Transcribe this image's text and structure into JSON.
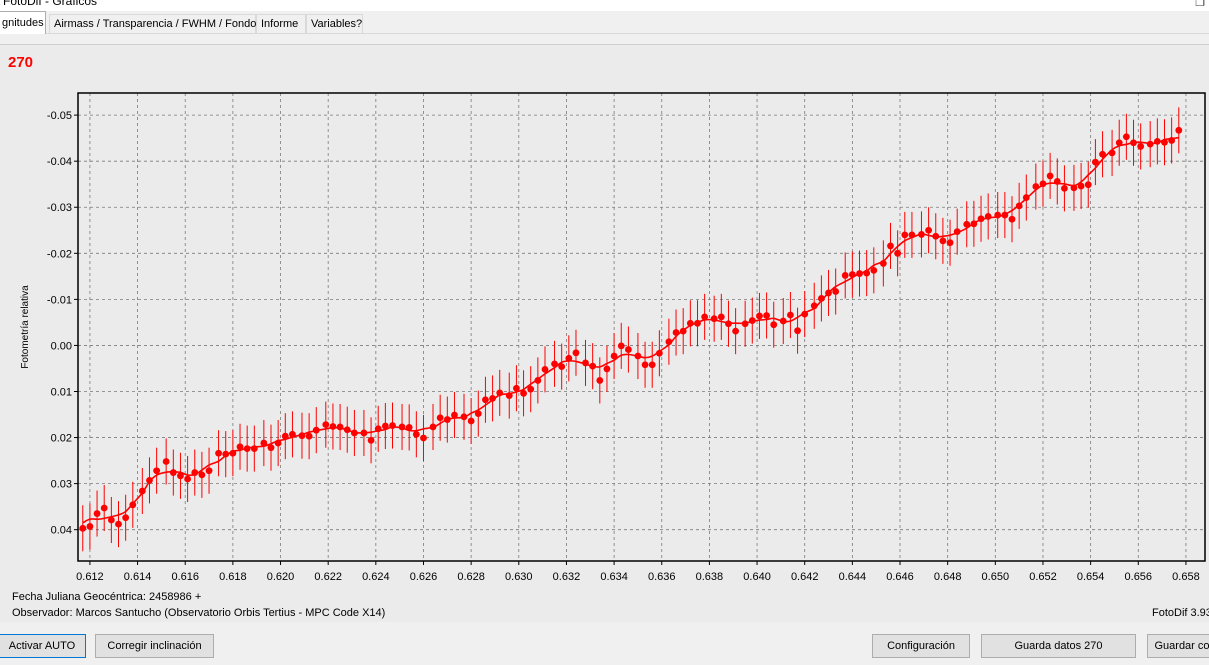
{
  "window": {
    "title": "FotoDif - Gráficos"
  },
  "tabs": [
    {
      "label": "gnitudes",
      "active": true
    },
    {
      "label": "Airmass / Transparencia / FWHM / Fondo",
      "active": false
    },
    {
      "label": "Informe",
      "active": false
    },
    {
      "label": "Variables?",
      "active": false
    }
  ],
  "panel": {
    "label": "270",
    "footer_line1": "Fecha Juliana Geocéntrica: 2458986 +",
    "footer_line2": "Observador: Marcos Santucho (Observatorio Orbis Tertius - MPC Code X14)",
    "version": "FotoDif 3.93"
  },
  "buttons": {
    "activar_auto": "Activar AUTO",
    "corregir_inclinacion": "Corregir inclinación",
    "configuracion": "Configuración",
    "guarda_datos": "Guarda datos 270",
    "guardar": "Guardar co"
  },
  "colors": {
    "series": "#ff0000",
    "plot_bg": "#ebebeb"
  },
  "chart_data": {
    "type": "scatter",
    "xlabel": "",
    "ylabel": "Fotometría relativa",
    "y_inverted": true,
    "xlim": [
      0.6115,
      0.6588
    ],
    "ylim": [
      -0.0548,
      0.0468
    ],
    "x_ticks": [
      "0.612",
      "0.614",
      "0.616",
      "0.618",
      "0.620",
      "0.622",
      "0.624",
      "0.626",
      "0.628",
      "0.630",
      "0.632",
      "0.634",
      "0.636",
      "0.638",
      "0.640",
      "0.642",
      "0.644",
      "0.646",
      "0.648",
      "0.650",
      "0.652",
      "0.654",
      "0.656",
      "0.658"
    ],
    "x_tick_values": [
      0.612,
      0.614,
      0.616,
      0.618,
      0.62,
      0.622,
      0.624,
      0.626,
      0.628,
      0.63,
      0.632,
      0.634,
      0.636,
      0.638,
      0.64,
      0.642,
      0.644,
      0.646,
      0.648,
      0.65,
      0.652,
      0.654,
      0.656,
      0.658
    ],
    "y_ticks": [
      "-0.05",
      "-0.04",
      "-0.03",
      "-0.02",
      "-0.01",
      "0.00",
      "0.01",
      "0.02",
      "0.03",
      "0.04"
    ],
    "y_tick_values": [
      -0.05,
      -0.04,
      -0.03,
      -0.02,
      -0.01,
      0.0,
      0.01,
      0.02,
      0.03,
      0.04
    ],
    "grid": true,
    "error_bar": 0.005,
    "series": [
      {
        "marker": "filled-circle",
        "smooth_line": true,
        "points": [
          [
            0.6117,
            0.0397
          ],
          [
            0.612,
            0.0393
          ],
          [
            0.6123,
            0.0365
          ],
          [
            0.6126,
            0.0353
          ],
          [
            0.6129,
            0.0379
          ],
          [
            0.6132,
            0.0388
          ],
          [
            0.6135,
            0.0374
          ],
          [
            0.6138,
            0.0346
          ],
          [
            0.6142,
            0.0316
          ],
          [
            0.6145,
            0.0293
          ],
          [
            0.6148,
            0.0272
          ],
          [
            0.6152,
            0.0252
          ],
          [
            0.6155,
            0.0276
          ],
          [
            0.6158,
            0.0283
          ],
          [
            0.6161,
            0.029
          ],
          [
            0.6164,
            0.0276
          ],
          [
            0.6167,
            0.0281
          ],
          [
            0.617,
            0.0272
          ],
          [
            0.6174,
            0.0234
          ],
          [
            0.6177,
            0.0236
          ],
          [
            0.618,
            0.0234
          ],
          [
            0.6183,
            0.022
          ],
          [
            0.6186,
            0.0224
          ],
          [
            0.6189,
            0.0224
          ],
          [
            0.6193,
            0.0212
          ],
          [
            0.6196,
            0.0222
          ],
          [
            0.6199,
            0.0212
          ],
          [
            0.6202,
            0.0197
          ],
          [
            0.6205,
            0.0193
          ],
          [
            0.6209,
            0.0196
          ],
          [
            0.6212,
            0.0197
          ],
          [
            0.6215,
            0.0184
          ],
          [
            0.6219,
            0.0172
          ],
          [
            0.6222,
            0.0176
          ],
          [
            0.6225,
            0.0177
          ],
          [
            0.6228,
            0.0183
          ],
          [
            0.6231,
            0.019
          ],
          [
            0.6235,
            0.019
          ],
          [
            0.6238,
            0.0206
          ],
          [
            0.6241,
            0.0181
          ],
          [
            0.6244,
            0.0175
          ],
          [
            0.6247,
            0.0174
          ],
          [
            0.6251,
            0.0177
          ],
          [
            0.6254,
            0.0178
          ],
          [
            0.6257,
            0.0193
          ],
          [
            0.626,
            0.0201
          ],
          [
            0.6264,
            0.0177
          ],
          [
            0.6267,
            0.0157
          ],
          [
            0.627,
            0.0161
          ],
          [
            0.6273,
            0.0151
          ],
          [
            0.6277,
            0.0155
          ],
          [
            0.628,
            0.0164
          ],
          [
            0.6283,
            0.0148
          ],
          [
            0.6286,
            0.0118
          ],
          [
            0.6289,
            0.0115
          ],
          [
            0.6292,
            0.0103
          ],
          [
            0.6296,
            0.0109
          ],
          [
            0.6299,
            0.0093
          ],
          [
            0.6302,
            0.0104
          ],
          [
            0.6305,
            0.0095
          ],
          [
            0.6308,
            0.0076
          ],
          [
            0.6311,
            0.0052
          ],
          [
            0.6315,
            0.004
          ],
          [
            0.6318,
            0.0046
          ],
          [
            0.6321,
            0.0028
          ],
          [
            0.6324,
            0.0016
          ],
          [
            0.6328,
            0.0038
          ],
          [
            0.6331,
            0.0045
          ],
          [
            0.6334,
            0.0076
          ],
          [
            0.6337,
            0.0051
          ],
          [
            0.634,
            0.0023
          ],
          [
            0.6343,
            0.0001
          ],
          [
            0.6346,
            0.0009
          ],
          [
            0.635,
            0.0023
          ],
          [
            0.6353,
            0.0042
          ],
          [
            0.6356,
            0.0042
          ],
          [
            0.6359,
            0.0017
          ],
          [
            0.6363,
            -0.0008
          ],
          [
            0.6366,
            -0.0028
          ],
          [
            0.6369,
            -0.0031
          ],
          [
            0.6372,
            -0.0048
          ],
          [
            0.6375,
            -0.0048
          ],
          [
            0.6378,
            -0.0062
          ],
          [
            0.6382,
            -0.0058
          ],
          [
            0.6385,
            -0.0062
          ],
          [
            0.6388,
            -0.0047
          ],
          [
            0.6391,
            -0.0031
          ],
          [
            0.6395,
            -0.0047
          ],
          [
            0.6398,
            -0.0054
          ],
          [
            0.6401,
            -0.0064
          ],
          [
            0.6404,
            -0.0065
          ],
          [
            0.6407,
            -0.0045
          ],
          [
            0.6411,
            -0.0053
          ],
          [
            0.6414,
            -0.0066
          ],
          [
            0.6417,
            -0.0032
          ],
          [
            0.642,
            -0.0068
          ],
          [
            0.6424,
            -0.0086
          ],
          [
            0.6427,
            -0.0102
          ],
          [
            0.643,
            -0.0114
          ],
          [
            0.6433,
            -0.0117
          ],
          [
            0.6437,
            -0.0152
          ],
          [
            0.644,
            -0.0154
          ],
          [
            0.6443,
            -0.0156
          ],
          [
            0.6446,
            -0.0157
          ],
          [
            0.6449,
            -0.0163
          ],
          [
            0.6453,
            -0.0178
          ],
          [
            0.6456,
            -0.0216
          ],
          [
            0.6459,
            -0.02
          ],
          [
            0.6462,
            -0.024
          ],
          [
            0.6465,
            -0.024
          ],
          [
            0.6469,
            -0.0241
          ],
          [
            0.6472,
            -0.025
          ],
          [
            0.6475,
            -0.0237
          ],
          [
            0.6478,
            -0.0227
          ],
          [
            0.6481,
            -0.0223
          ],
          [
            0.6484,
            -0.0247
          ],
          [
            0.6488,
            -0.0263
          ],
          [
            0.6491,
            -0.0264
          ],
          [
            0.6494,
            -0.0275
          ],
          [
            0.6497,
            -0.028
          ],
          [
            0.6501,
            -0.0283
          ],
          [
            0.6504,
            -0.0283
          ],
          [
            0.6507,
            -0.0274
          ],
          [
            0.651,
            -0.0303
          ],
          [
            0.6513,
            -0.0321
          ],
          [
            0.6517,
            -0.0345
          ],
          [
            0.652,
            -0.0351
          ],
          [
            0.6523,
            -0.0368
          ],
          [
            0.6526,
            -0.0356
          ],
          [
            0.6529,
            -0.0341
          ],
          [
            0.6533,
            -0.0342
          ],
          [
            0.6536,
            -0.0346
          ],
          [
            0.6539,
            -0.0349
          ],
          [
            0.6542,
            -0.0398
          ],
          [
            0.6545,
            -0.0415
          ],
          [
            0.6549,
            -0.0418
          ],
          [
            0.6552,
            -0.044
          ],
          [
            0.6555,
            -0.0453
          ],
          [
            0.6558,
            -0.044
          ],
          [
            0.6561,
            -0.0432
          ],
          [
            0.6565,
            -0.0437
          ],
          [
            0.6568,
            -0.0443
          ],
          [
            0.6571,
            -0.0441
          ],
          [
            0.6574,
            -0.0445
          ],
          [
            0.6577,
            -0.0467
          ]
        ]
      }
    ]
  }
}
